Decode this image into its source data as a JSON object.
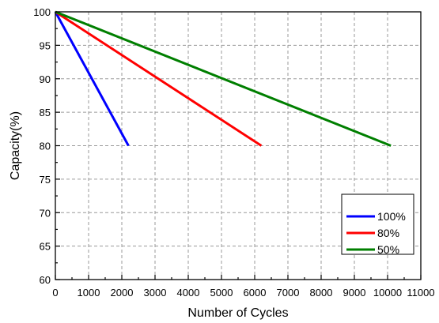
{
  "chart_data": {
    "type": "line",
    "xlabel": "Number of Cycles",
    "ylabel": "Capacity(%)",
    "xlim": [
      0,
      11000
    ],
    "ylim": [
      60,
      100
    ],
    "x_ticks": [
      0,
      1000,
      2000,
      3000,
      4000,
      5000,
      6000,
      7000,
      8000,
      9000,
      10000,
      11000
    ],
    "x_tick_labels": [
      "0",
      "1000",
      "2000",
      "3000",
      "4000",
      "5000",
      "6000",
      "7000",
      "8000",
      "9000",
      "10000",
      "11000"
    ],
    "y_ticks": [
      60,
      65,
      70,
      75,
      80,
      85,
      90,
      95,
      100
    ],
    "y_tick_labels": [
      "60",
      "65",
      "70",
      "75",
      "80",
      "85",
      "90",
      "95",
      "100"
    ],
    "grid": true,
    "legend_position": "bottom-right",
    "series": [
      {
        "name": "100%",
        "color": "#0000ff",
        "x": [
          0,
          2200
        ],
        "y": [
          100,
          80
        ]
      },
      {
        "name": "80%",
        "color": "#ff0000",
        "x": [
          0,
          6200
        ],
        "y": [
          100,
          80
        ]
      },
      {
        "name": "50%",
        "color": "#007f00",
        "x": [
          0,
          10100
        ],
        "y": [
          100,
          80
        ]
      }
    ]
  }
}
